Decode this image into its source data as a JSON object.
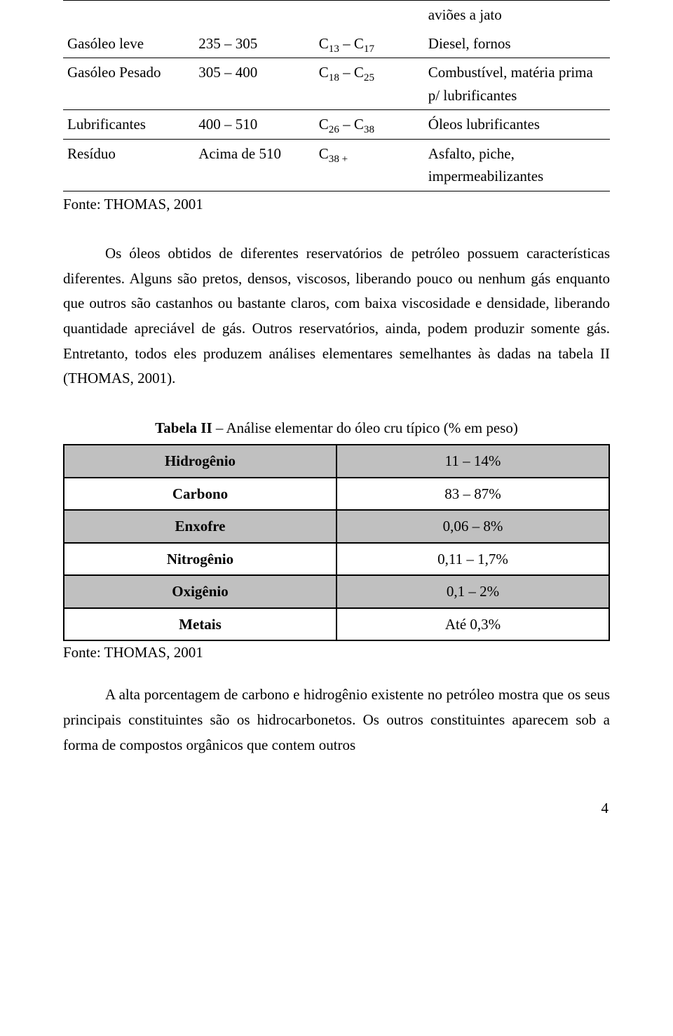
{
  "table1": {
    "pre_row": {
      "c1": "",
      "c2": "",
      "c3": "",
      "c4": "aviões a jato"
    },
    "rows": [
      {
        "c1": "Gasóleo leve",
        "c2": "235 – 305",
        "c3_html": "C<sub>13</sub> – C<sub>17</sub>",
        "c4": "Diesel, fornos"
      },
      {
        "c1": "Gasóleo Pesado",
        "c2": "305 – 400",
        "c3_html": "C<sub>18</sub> – C<sub>25</sub>",
        "c4": "Combustível, matéria prima p/ lubrificantes"
      },
      {
        "c1": "Lubrificantes",
        "c2": "400 – 510",
        "c3_html": "C<sub>26</sub> – C<sub>38</sub>",
        "c4": "Óleos lubrificantes"
      },
      {
        "c1": "Resíduo",
        "c2": "Acima de 510",
        "c3_html": "C<sub>38 +</sub>",
        "c4": "Asfalto, piche, impermeabilizantes"
      }
    ],
    "source": "Fonte: THOMAS, 2001"
  },
  "paragraph1": "Os óleos obtidos de diferentes reservatórios de petróleo possuem características diferentes. Alguns são pretos, densos, viscosos, liberando pouco ou nenhum gás enquanto que outros são castanhos ou bastante claros, com baixa viscosidade e densidade, liberando quantidade apreciável de gás. Outros reservatórios, ainda, podem produzir somente gás. Entretanto, todos eles produzem análises elementares semelhantes às dadas na tabela II (THOMAS, 2001).",
  "table2": {
    "title_bold": "Tabela II",
    "title_rest": " – Análise elementar do óleo cru típico (% em peso)",
    "rows": [
      {
        "label": "Hidrogênio",
        "value": "11 – 14%",
        "shade": true
      },
      {
        "label": "Carbono",
        "value": "83 – 87%",
        "shade": false
      },
      {
        "label": "Enxofre",
        "value": "0,06 – 8%",
        "shade": true
      },
      {
        "label": "Nitrogênio",
        "value": "0,11 – 1,7%",
        "shade": false
      },
      {
        "label": "Oxigênio",
        "value": "0,1 – 2%",
        "shade": true
      },
      {
        "label": "Metais",
        "value": "Até 0,3%",
        "shade": false
      }
    ],
    "source": "Fonte: THOMAS, 2001"
  },
  "paragraph2": "A alta porcentagem de carbono e hidrogênio existente no petróleo mostra que os seus principais constituintes são os hidrocarbonetos. Os outros constituintes aparecem sob a forma de compostos orgânicos que contem outros",
  "page_number": "4",
  "colors": {
    "shade": "#c0c0c0",
    "border": "#000000",
    "text": "#000000",
    "background": "#ffffff"
  }
}
